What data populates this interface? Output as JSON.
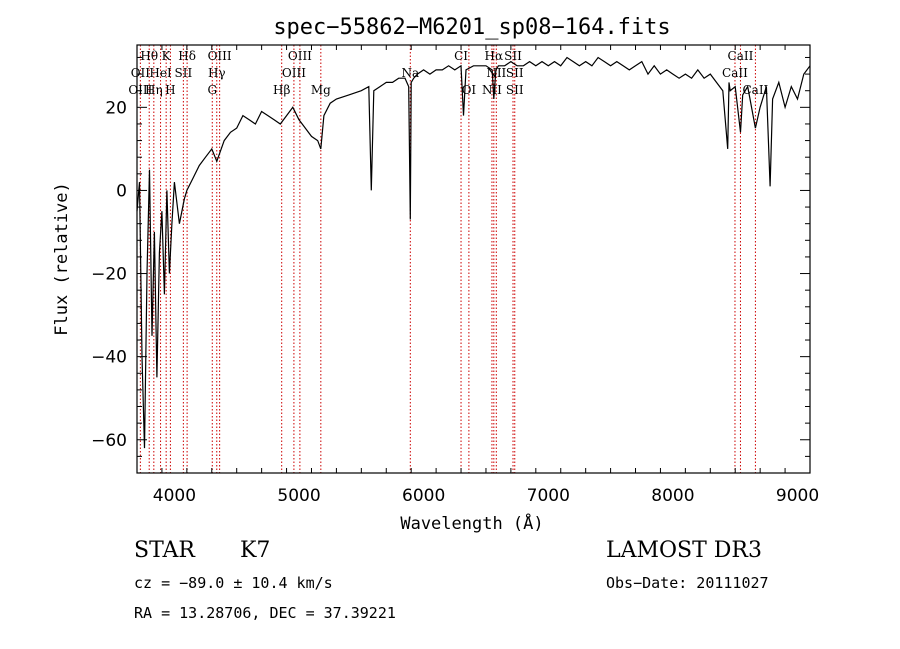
{
  "chart_data": {
    "type": "line",
    "title": "spec−55862−M6201_sp08−164.fits",
    "xlabel": "Wavelength (Å)",
    "ylabel": "Flux (relative)",
    "xlim": [
      3700,
      9100
    ],
    "ylim": [
      -68,
      35
    ],
    "x_ticks": [
      4000,
      5000,
      6000,
      7000,
      8000,
      9000
    ],
    "y_ticks": [
      -60,
      -40,
      -20,
      0,
      20
    ],
    "x_tick_labels": [
      "4000",
      "5000",
      "6000",
      "7000",
      "8000",
      "9000"
    ],
    "y_tick_labels": [
      "−60",
      "−40",
      "−20",
      "0",
      "20"
    ],
    "series": [
      {
        "name": "flux",
        "x": [
          3700,
          3720,
          3740,
          3760,
          3780,
          3800,
          3820,
          3840,
          3860,
          3880,
          3900,
          3920,
          3940,
          3960,
          3980,
          4000,
          4040,
          4080,
          4100,
          4150,
          4200,
          4250,
          4300,
          4340,
          4400,
          4450,
          4500,
          4550,
          4600,
          4650,
          4700,
          4750,
          4800,
          4850,
          4900,
          4950,
          5000,
          5050,
          5100,
          5150,
          5175,
          5200,
          5250,
          5300,
          5400,
          5500,
          5560,
          5580,
          5600,
          5650,
          5700,
          5750,
          5800,
          5850,
          5880,
          5893,
          5900,
          5920,
          5950,
          6000,
          6050,
          6100,
          6150,
          6200,
          6250,
          6300,
          6320,
          6340,
          6400,
          6450,
          6500,
          6550,
          6563,
          6580,
          6600,
          6650,
          6700,
          6750,
          6800,
          6850,
          6900,
          6950,
          7000,
          7050,
          7100,
          7150,
          7200,
          7250,
          7300,
          7350,
          7400,
          7450,
          7500,
          7550,
          7600,
          7650,
          7700,
          7750,
          7800,
          7850,
          7900,
          7950,
          8000,
          8050,
          8100,
          8150,
          8200,
          8250,
          8300,
          8350,
          8400,
          8440,
          8450,
          8460,
          8500,
          8542,
          8560,
          8600,
          8662,
          8700,
          8750,
          8780,
          8800,
          8850,
          8900,
          8950,
          9000,
          9050,
          9100
        ],
        "y": [
          -5,
          2,
          -40,
          -62,
          -20,
          5,
          -35,
          -10,
          -45,
          -15,
          -5,
          -25,
          0,
          -20,
          -8,
          2,
          -8,
          -2,
          0,
          3,
          6,
          8,
          10,
          7,
          12,
          14,
          15,
          18,
          17,
          16,
          19,
          18,
          17,
          16,
          18,
          20,
          17,
          15,
          13,
          12,
          10,
          18,
          21,
          22,
          23,
          24,
          25,
          0,
          24,
          25,
          26,
          26,
          27,
          27,
          25,
          -7,
          26,
          27,
          28,
          29,
          28,
          29,
          29,
          30,
          29,
          30,
          18,
          29,
          30,
          30,
          30,
          29,
          22,
          29,
          30,
          30,
          31,
          30,
          30,
          31,
          30,
          31,
          30,
          31,
          30,
          32,
          31,
          30,
          31,
          30,
          32,
          31,
          30,
          31,
          30,
          29,
          30,
          31,
          28,
          30,
          28,
          29,
          28,
          27,
          28,
          27,
          29,
          27,
          28,
          26,
          24,
          10,
          26,
          24,
          25,
          14,
          23,
          25,
          15,
          20,
          25,
          1,
          22,
          26,
          20,
          25,
          22,
          28,
          30
        ]
      }
    ],
    "line_labels": [
      {
        "text": "Hθ",
        "wave": 3798,
        "row": 1
      },
      {
        "text": "K",
        "wave": 3934,
        "row": 1
      },
      {
        "text": "Hδ",
        "wave": 4102,
        "row": 1
      },
      {
        "text": "OIII",
        "wave": 4363,
        "row": 1
      },
      {
        "text": "OIII",
        "wave": 5007,
        "row": 1
      },
      {
        "text": "CI",
        "wave": 6300,
        "row": 1
      },
      {
        "text": "Hα",
        "wave": 6563,
        "row": 1
      },
      {
        "text": "SII",
        "wave": 6717,
        "row": 1
      },
      {
        "text": "CaII",
        "wave": 8542,
        "row": 1
      },
      {
        "text": "OII",
        "wave": 3727,
        "row": 2
      },
      {
        "text": "HeI",
        "wave": 3889,
        "row": 2
      },
      {
        "text": "SII",
        "wave": 4072,
        "row": 2
      },
      {
        "text": "Hγ",
        "wave": 4340,
        "row": 2
      },
      {
        "text": "OIII",
        "wave": 4959,
        "row": 2
      },
      {
        "text": "Na",
        "wave": 5893,
        "row": 2
      },
      {
        "text": "NII",
        "wave": 6583,
        "row": 2
      },
      {
        "text": "SII",
        "wave": 6731,
        "row": 2
      },
      {
        "text": "CaII",
        "wave": 8498,
        "row": 2
      },
      {
        "text": "OIII",
        "wave": 3727,
        "row": 3
      },
      {
        "text": "Hη",
        "wave": 3835,
        "row": 3
      },
      {
        "text": "H",
        "wave": 3968,
        "row": 3
      },
      {
        "text": "G",
        "wave": 4304,
        "row": 3
      },
      {
        "text": "Hβ",
        "wave": 4861,
        "row": 3
      },
      {
        "text": "Mg",
        "wave": 5175,
        "row": 3
      },
      {
        "text": "OI",
        "wave": 6363,
        "row": 3
      },
      {
        "text": "NII",
        "wave": 6548,
        "row": 3
      },
      {
        "text": "SII",
        "wave": 6731,
        "row": 3
      },
      {
        "text": "CaII",
        "wave": 8662,
        "row": 3
      }
    ],
    "line_markers": [
      3727,
      3798,
      3835,
      3889,
      3934,
      3968,
      4072,
      4102,
      4304,
      4340,
      4363,
      4861,
      4959,
      5007,
      5175,
      5893,
      6300,
      6363,
      6548,
      6563,
      6583,
      6717,
      6731,
      8498,
      8542,
      8662
    ]
  },
  "info": {
    "object_class": "STAR",
    "subclass": "K7",
    "survey": "LAMOST DR3",
    "redshift": "cz = −89.0 ± 10.4 km/s",
    "obs_date": "Obs−Date: 20111027",
    "coords": "RA =  13.28706, DEC =  37.39221"
  },
  "colors": {
    "spectrum": "#000000",
    "marker": "#cc0000",
    "background": "#ffffff"
  }
}
